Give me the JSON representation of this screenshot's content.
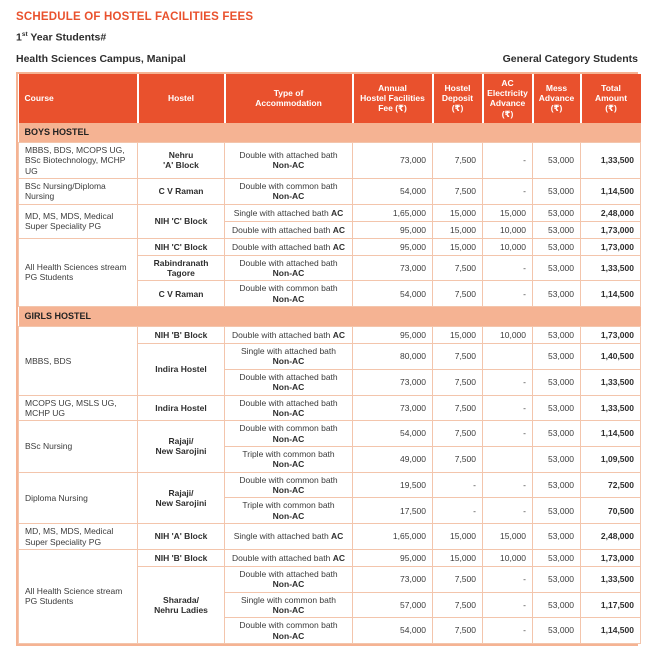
{
  "header": {
    "title": "SCHEDULE OF HOSTEL FACILITIES FEES",
    "year_prefix": "1",
    "year_sup": "st",
    "year_rest": " Year Students#",
    "campus": "Health Sciences Campus, Manipal",
    "category": "General Category Students"
  },
  "colors": {
    "accent": "#E9512D",
    "section_bg": "#F5B393",
    "grid": "#F3C5AC",
    "header_text": "#FFFFFF",
    "body_text": "#3B3B3B"
  },
  "table": {
    "columns": [
      "Course",
      "Hostel",
      "Type of\nAccommodation",
      "Annual\nHostel Facilities\nFee (₹)",
      "Hostel\nDeposit\n(₹)",
      "AC\nElectricity\nAdvance\n(₹)",
      "Mess\nAdvance\n(₹)",
      "Total\nAmount\n(₹)"
    ],
    "sections": [
      {
        "title": "BOYS HOSTEL",
        "rows": [
          {
            "course": {
              "text": "MBBS, BDS, MCOPS UG, BSc Biotechnology, MCHP UG",
              "rowspan": 1
            },
            "hostel": {
              "text": "Nehru\n'A' Block",
              "rowspan": 1
            },
            "type": {
              "pre": "Double with attached bath",
              "bold": "Non-AC",
              "inline": false
            },
            "values": [
              "73,000",
              "7,500",
              "-",
              "53,000",
              "1,33,500"
            ]
          },
          {
            "course": {
              "text": "BSc Nursing/Diploma Nursing",
              "rowspan": 1
            },
            "hostel": {
              "text": "C V Raman",
              "rowspan": 1
            },
            "type": {
              "pre": "Double with common bath",
              "bold": "Non-AC",
              "inline": false
            },
            "values": [
              "54,000",
              "7,500",
              "-",
              "53,000",
              "1,14,500"
            ]
          },
          {
            "course": {
              "text": "MD, MS, MDS, Medical Super Speciality PG",
              "rowspan": 2
            },
            "hostel": {
              "text": "NIH 'C' Block",
              "rowspan": 2
            },
            "type": {
              "pre": "Single with attached bath ",
              "bold": "AC",
              "inline": true
            },
            "values": [
              "1,65,000",
              "15,000",
              "15,000",
              "53,000",
              "2,48,000"
            ]
          },
          {
            "type": {
              "pre": "Double with attached bath ",
              "bold": "AC",
              "inline": true
            },
            "values": [
              "95,000",
              "15,000",
              "10,000",
              "53,000",
              "1,73,000"
            ]
          },
          {
            "course": {
              "text": "All Health Sciences stream PG Students",
              "rowspan": 3
            },
            "hostel": {
              "text": "NIH 'C' Block",
              "rowspan": 1
            },
            "type": {
              "pre": "Double with attached bath ",
              "bold": "AC",
              "inline": true
            },
            "values": [
              "95,000",
              "15,000",
              "10,000",
              "53,000",
              "1,73,000"
            ]
          },
          {
            "hostel": {
              "text": "Rabindranath\nTagore",
              "rowspan": 1
            },
            "type": {
              "pre": "Double with attached bath",
              "bold": "Non-AC",
              "inline": false
            },
            "values": [
              "73,000",
              "7,500",
              "-",
              "53,000",
              "1,33,500"
            ]
          },
          {
            "hostel": {
              "text": "C V Raman",
              "rowspan": 1
            },
            "type": {
              "pre": "Double with common bath",
              "bold": "Non-AC",
              "inline": false
            },
            "values": [
              "54,000",
              "7,500",
              "-",
              "53,000",
              "1,14,500"
            ]
          }
        ]
      },
      {
        "title": "GIRLS HOSTEL",
        "rows": [
          {
            "course": {
              "text": "MBBS, BDS",
              "rowspan": 3
            },
            "hostel": {
              "text": "NIH 'B' Block",
              "rowspan": 1
            },
            "type": {
              "pre": "Double with attached bath ",
              "bold": "AC",
              "inline": true
            },
            "values": [
              "95,000",
              "15,000",
              "10,000",
              "53,000",
              "1,73,000"
            ]
          },
          {
            "hostel": {
              "text": "Indira Hostel",
              "rowspan": 2
            },
            "type": {
              "pre": "Single with attached bath",
              "bold": "Non-AC",
              "inline": false
            },
            "values": [
              "80,000",
              "7,500",
              "",
              "53,000",
              "1,40,500"
            ]
          },
          {
            "type": {
              "pre": "Double with attached bath",
              "bold": "Non-AC",
              "inline": false
            },
            "values": [
              "73,000",
              "7,500",
              "-",
              "53,000",
              "1,33,500"
            ]
          },
          {
            "course": {
              "text": "MCOPS UG, MSLS UG, MCHP UG",
              "rowspan": 1
            },
            "hostel": {
              "text": "Indira Hostel",
              "rowspan": 1
            },
            "type": {
              "pre": "Double with attached bath",
              "bold": "Non-AC",
              "inline": false
            },
            "values": [
              "73,000",
              "7,500",
              "-",
              "53,000",
              "1,33,500"
            ]
          },
          {
            "course": {
              "text": "BSc Nursing",
              "rowspan": 2
            },
            "hostel": {
              "text": "Rajaji/\nNew Sarojini",
              "rowspan": 2
            },
            "type": {
              "pre": "Double with common bath",
              "bold": "Non-AC",
              "inline": false
            },
            "values": [
              "54,000",
              "7,500",
              "-",
              "53,000",
              "1,14,500"
            ]
          },
          {
            "type": {
              "pre": "Triple with common bath",
              "bold": "Non-AC",
              "inline": false
            },
            "values": [
              "49,000",
              "7,500",
              "",
              "53,000",
              "1,09,500"
            ]
          },
          {
            "course": {
              "text": "Diploma Nursing",
              "rowspan": 2
            },
            "hostel": {
              "text": "Rajaji/\nNew Sarojini",
              "rowspan": 2
            },
            "type": {
              "pre": "Double with common bath",
              "bold": "Non-AC",
              "inline": false
            },
            "values": [
              "19,500",
              "-",
              "-",
              "53,000",
              "72,500"
            ]
          },
          {
            "type": {
              "pre": "Triple with common bath",
              "bold": "Non-AC",
              "inline": false
            },
            "values": [
              "17,500",
              "-",
              "-",
              "53,000",
              "70,500"
            ]
          },
          {
            "course": {
              "text": "MD, MS, MDS, Medical Super Speciality PG",
              "rowspan": 1
            },
            "hostel": {
              "text": "NIH 'A' Block",
              "rowspan": 1
            },
            "type": {
              "pre": "Single with attached bath ",
              "bold": "AC",
              "inline": true
            },
            "values": [
              "1,65,000",
              "15,000",
              "15,000",
              "53,000",
              "2,48,000"
            ]
          },
          {
            "course": {
              "text": "All Health Science stream PG Students",
              "rowspan": 4
            },
            "hostel": {
              "text": "NIH 'B' Block",
              "rowspan": 1
            },
            "type": {
              "pre": "Double with attached bath ",
              "bold": "AC",
              "inline": true
            },
            "values": [
              "95,000",
              "15,000",
              "10,000",
              "53,000",
              "1,73,000"
            ]
          },
          {
            "hostel": {
              "text": "Sharada/\nNehru Ladies",
              "rowspan": 3
            },
            "type": {
              "pre": "Double with attached bath",
              "bold": "Non-AC",
              "inline": false
            },
            "values": [
              "73,000",
              "7,500",
              "-",
              "53,000",
              "1,33,500"
            ]
          },
          {
            "type": {
              "pre": "Single with common bath",
              "bold": "Non-AC",
              "inline": false
            },
            "values": [
              "57,000",
              "7,500",
              "-",
              "53,000",
              "1,17,500"
            ]
          },
          {
            "type": {
              "pre": "Double with common bath",
              "bold": "Non-AC",
              "inline": false
            },
            "values": [
              "54,000",
              "7,500",
              "-",
              "53,000",
              "1,14,500"
            ]
          }
        ]
      }
    ]
  }
}
